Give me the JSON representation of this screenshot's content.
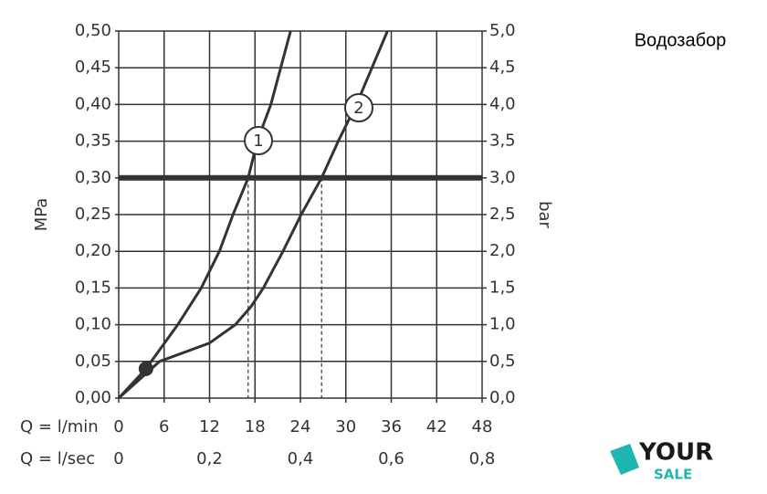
{
  "chart_data": {
    "type": "line",
    "title": "Водозабор",
    "y_label": "MPa",
    "y2_label": "bar",
    "x_label": "Q = l/min",
    "x2_label": "Q = l/sec",
    "xlim": [
      0,
      48
    ],
    "xticks": [
      0,
      6,
      12,
      18,
      24,
      30,
      36,
      42,
      48
    ],
    "x2lim": [
      0,
      0.8
    ],
    "x2ticks": [
      0,
      {
        "value": 0.2,
        "label": "0,2"
      },
      {
        "value": 0.4,
        "label": "0,4"
      },
      {
        "value": 0.6,
        "label": "0,6"
      },
      {
        "value": 0.8,
        "label": "0,8"
      }
    ],
    "ylim": [
      0,
      0.5
    ],
    "yticks": [
      {
        "value": 0,
        "label": "0,00"
      },
      {
        "value": 0.05,
        "label": "0,05"
      },
      {
        "value": 0.1,
        "label": "0,10"
      },
      {
        "value": 0.15,
        "label": "0,15"
      },
      {
        "value": 0.2,
        "label": "0,20"
      },
      {
        "value": 0.25,
        "label": "0,25"
      },
      {
        "value": 0.3,
        "label": "0,30"
      },
      {
        "value": 0.35,
        "label": "0,35"
      },
      {
        "value": 0.4,
        "label": "0,40"
      },
      {
        "value": 0.45,
        "label": "0,45"
      },
      {
        "value": 0.5,
        "label": "0,50"
      }
    ],
    "y2lim": [
      0,
      5
    ],
    "y2ticks": [
      {
        "value": 0,
        "label": "0,0"
      },
      {
        "value": 0.5,
        "label": "0,5"
      },
      {
        "value": 1,
        "label": "1,0"
      },
      {
        "value": 1.5,
        "label": "1,5"
      },
      {
        "value": 2,
        "label": "2,0"
      },
      {
        "value": 2.5,
        "label": "2,5"
      },
      {
        "value": 3,
        "label": "3,0"
      },
      {
        "value": 3.5,
        "label": "3,5"
      },
      {
        "value": 4,
        "label": "4,0"
      },
      {
        "value": 4.5,
        "label": "4,5"
      },
      {
        "value": 5,
        "label": "5,0"
      }
    ],
    "grid": true,
    "series": [
      {
        "name": "1",
        "color": "#333333",
        "x": [
          0,
          3.6,
          7.8,
          10.9,
          13.3,
          15.1,
          17.1,
          18.3,
          20.1,
          22.7
        ],
        "y": [
          0,
          0.04,
          0.1,
          0.15,
          0.2,
          0.25,
          0.3,
          0.35,
          0.4,
          0.5
        ]
      },
      {
        "name": "2",
        "color": "#333333",
        "x": [
          0,
          5.4,
          12,
          15.4,
          17.5,
          19.1,
          21.7,
          24.1,
          26.8,
          29,
          31.4,
          35.5
        ],
        "y": [
          0,
          0.05,
          0.075,
          0.1,
          0.125,
          0.15,
          0.2,
          0.25,
          0.3,
          0.35,
          0.4,
          0.5
        ]
      }
    ],
    "marker": {
      "x": 3.6,
      "y": 0.04
    },
    "hline": 0.3,
    "vlines": [
      17.1,
      26.8
    ]
  },
  "logo": {
    "top": "YOUR",
    "bottom": "SALE"
  }
}
